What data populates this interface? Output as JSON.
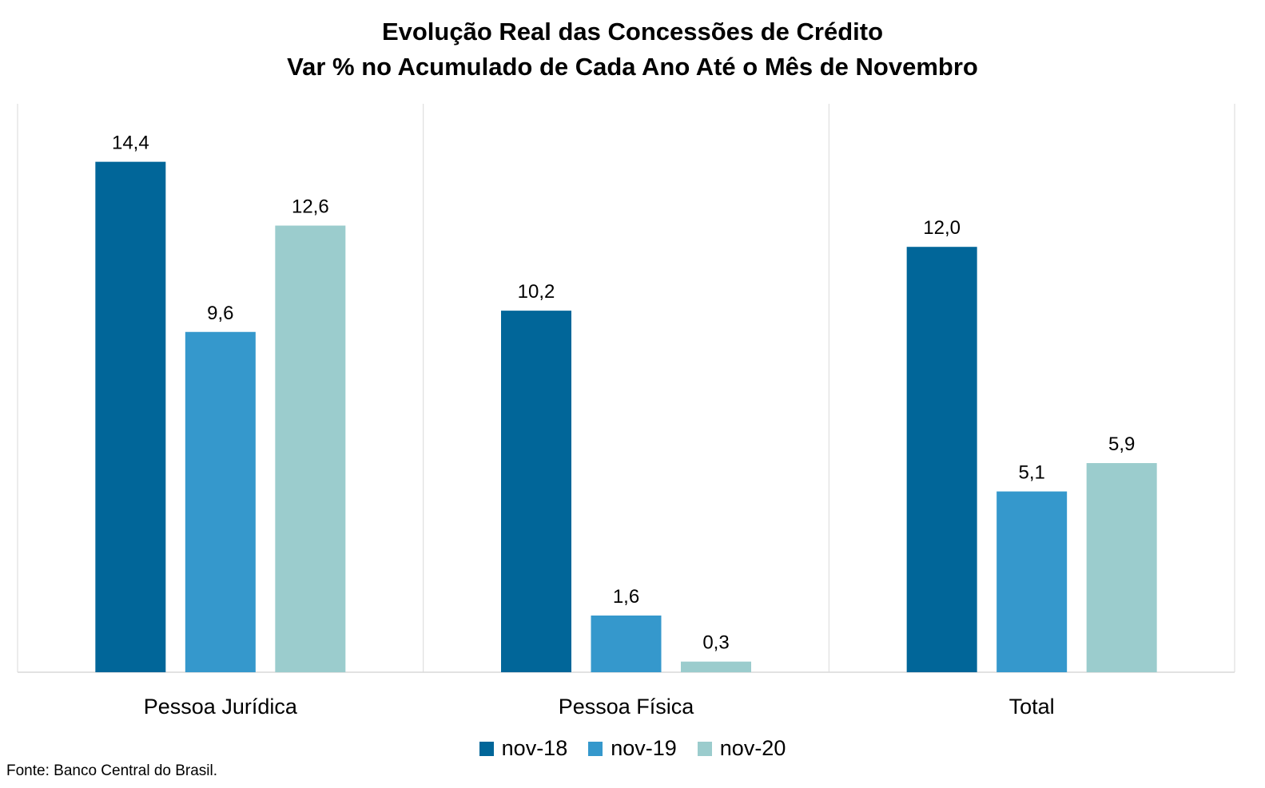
{
  "chart_data": {
    "type": "bar",
    "title": "Evolução Real das Concessões de Crédito",
    "subtitle": "Var % no Acumulado de Cada Ano Até o Mês de Novembro",
    "categories": [
      "Pessoa Jurídica",
      "Pessoa Física",
      "Total"
    ],
    "series": [
      {
        "name": "nov-18",
        "color": "#016699",
        "values": [
          14.4,
          10.2,
          12.0
        ],
        "labels": [
          "14,4",
          "10,2",
          "12,0"
        ]
      },
      {
        "name": "nov-19",
        "color": "#3598cc",
        "values": [
          9.6,
          1.6,
          5.1
        ],
        "labels": [
          "9,6",
          "1,6",
          "5,1"
        ]
      },
      {
        "name": "nov-20",
        "color": "#9bcccd",
        "values": [
          12.6,
          0.3,
          5.9
        ],
        "labels": [
          "12,6",
          "0,3",
          "5,9"
        ]
      }
    ],
    "ylim": [
      0,
      16
    ],
    "grid": false,
    "legend": "bottom"
  },
  "source": "Fonte: Banco Central do Brasil."
}
